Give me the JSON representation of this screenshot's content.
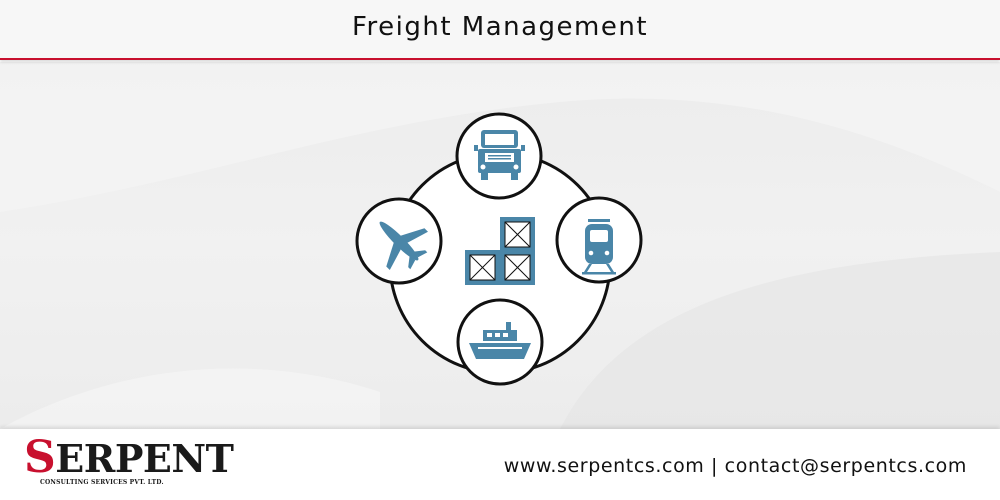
{
  "header": {
    "title": "Freight Management"
  },
  "diagram": {
    "icon_color": "#4a86a8",
    "center_icon": "stacked-cargo-boxes-icon",
    "nodes": [
      {
        "icon": "truck-icon"
      },
      {
        "icon": "train-icon"
      },
      {
        "icon": "ship-icon"
      },
      {
        "icon": "airplane-icon"
      }
    ]
  },
  "footer": {
    "logo": {
      "wordmark_first": "S",
      "wordmark_rest": "ERPENT",
      "tagline": "CONSULTING SERVICES PVT. LTD."
    },
    "contact": "www.serpentcs.com | contact@serpentcs.com"
  },
  "colors": {
    "accent_red": "#c8102e",
    "icon_blue": "#4a86a8"
  }
}
